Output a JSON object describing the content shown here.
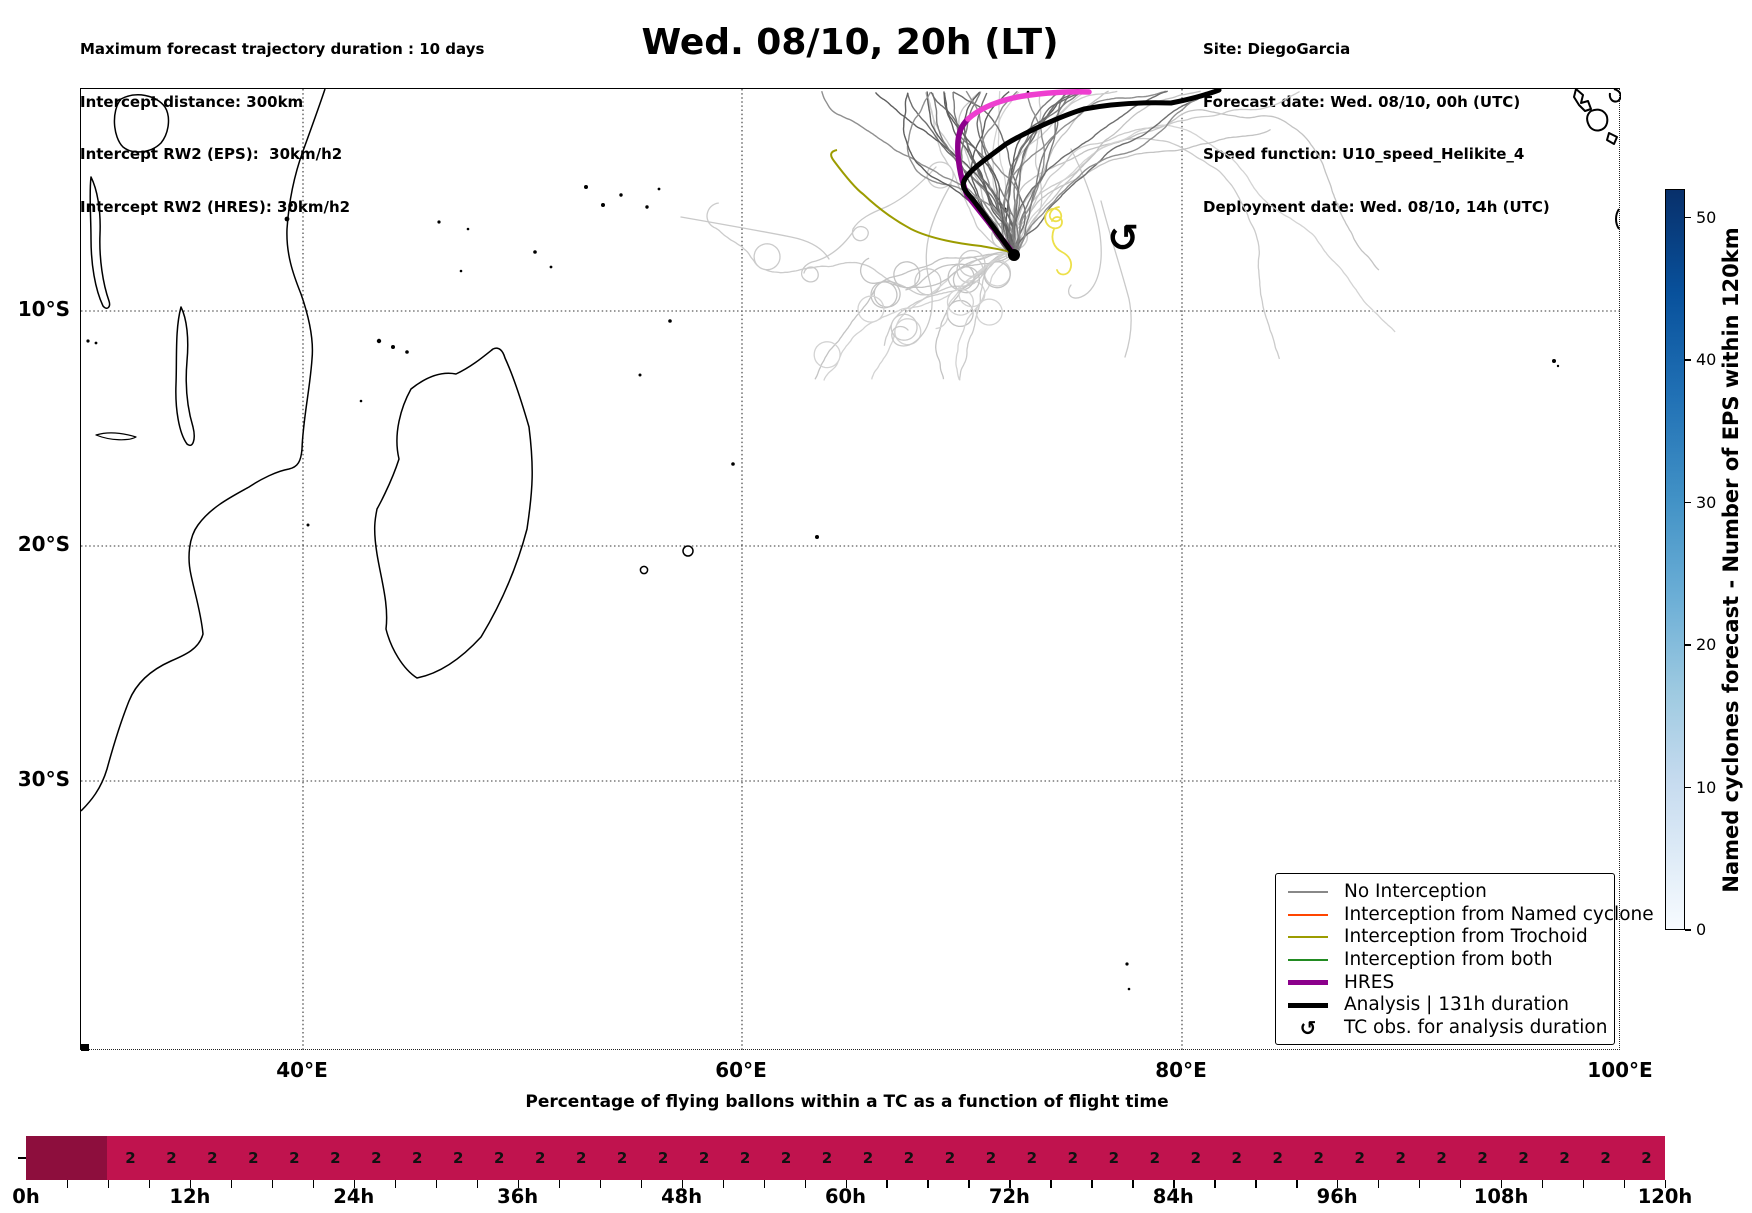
{
  "figure": {
    "title": "Wed. 08/10, 20h (LT)",
    "info_left": [
      "Maximum forecast trajectory duration : 10 days",
      "Intercept distance: 300km",
      "Intercept RW2 (EPS):  30km/h2",
      "Intercept RW2 (HRES): 30km/h2"
    ],
    "info_right": [
      "Site: DiegoGarcia",
      "Forecast date: Wed. 08/10, 00h (UTC)",
      "Speed function: U10_speed_Helikite_4",
      "Deployment date: Wed. 08/10, 14h (UTC)"
    ]
  },
  "map_axes": {
    "lon_ticks": [
      "40°E",
      "60°E",
      "80°E",
      "100°E"
    ],
    "lat_ticks": [
      "10°S",
      "20°S",
      "30°S"
    ],
    "tc_obs_symbol": "↺"
  },
  "legend": {
    "items": [
      {
        "label": "No Interception",
        "color": "#888888",
        "style": "line",
        "width": 2
      },
      {
        "label": "Interception from Named cyclone",
        "color": "#ff4500",
        "style": "line",
        "width": 2
      },
      {
        "label": "Interception from Trochoid",
        "color": "#9c9c00",
        "style": "line",
        "width": 2
      },
      {
        "label": "Interception from both",
        "color": "#228b22",
        "style": "line",
        "width": 2
      },
      {
        "label": "HRES",
        "color": "#8b008b",
        "style": "line",
        "width": 5
      },
      {
        "label": "Analysis | 131h duration",
        "color": "#000000",
        "style": "line",
        "width": 5
      },
      {
        "label": "TC obs. for analysis duration",
        "color": "#000000",
        "style": "symbol",
        "symbol": "↺"
      }
    ]
  },
  "colorbar": {
    "label": "Named cyclones forecast - Number of EPS within 120km",
    "ticks": [
      "0",
      "10",
      "20",
      "30",
      "40",
      "50"
    ],
    "range": [
      0,
      52
    ],
    "bottom_color": "#f7fbff",
    "top_color": "#08306b"
  },
  "chart_data": [
    {
      "type": "map",
      "title": "Wed. 08/10, 20h (LT)",
      "lon_range": [
        30,
        100.3
      ],
      "lat_range": [
        -41.6,
        0
      ],
      "gridlines": {
        "lon": [
          40,
          60,
          80,
          100
        ],
        "lat": [
          -10,
          -20,
          -30
        ],
        "style": "dotted"
      },
      "site": {
        "name": "DiegoGarcia",
        "lon": 72.4,
        "lat": -7.3
      },
      "ensemble": {
        "description": "EPS balloon forecast trajectories, no interception (gray)",
        "dark_count": 30,
        "light_count": 26,
        "dark_colors": [
          "#5f5f5f",
          "#6e6e6e",
          "#7d7d7d",
          "#8f8f8f"
        ],
        "light_colors": [
          "#c3c3c3",
          "#cbcbcb",
          "#d3d3d3"
        ],
        "seed": 7
      },
      "tracks": {
        "analysis_black": [
          [
            72.4,
            -7.0
          ],
          [
            70.5,
            -4.6
          ],
          [
            70.1,
            -4.0
          ],
          [
            71.4,
            -2.6
          ],
          [
            73.4,
            -1.8
          ],
          [
            75.6,
            -0.9
          ],
          [
            78.2,
            -0.6
          ],
          [
            80.0,
            -0.3
          ],
          [
            81.7,
            0.0
          ]
        ],
        "hres_purple": [
          [
            72.4,
            -7.0
          ],
          [
            70.7,
            -4.8
          ],
          [
            70.0,
            -3.2
          ],
          [
            69.8,
            -2.3
          ],
          [
            70.3,
            -1.3
          ]
        ],
        "hres_extension_magenta": [
          [
            70.3,
            -1.3
          ],
          [
            72.3,
            -0.4
          ],
          [
            74.0,
            -0.2
          ],
          [
            75.9,
            -0.1
          ]
        ],
        "trochoid_olive": [
          [
            64.2,
            -3.1
          ],
          [
            65.5,
            -4.4
          ],
          [
            66.8,
            -5.5
          ],
          [
            69.0,
            -6.2
          ],
          [
            70.9,
            -6.6
          ],
          [
            72.4,
            -7.0
          ]
        ],
        "tc_observed_yellow_spiral_center": [
          74.5,
          -5.7
        ],
        "tc_obs_symbol_position": [
          77.4,
          -6.3
        ]
      }
    },
    {
      "type": "bar",
      "title": "Percentage of flying ballons within a TC as a function of flight time",
      "x_tick_labels": [
        "0h",
        "12h",
        "24h",
        "36h",
        "48h",
        "60h",
        "72h",
        "84h",
        "96h",
        "108h",
        "120h"
      ],
      "x_range_hours": [
        0,
        120
      ],
      "bin_width_hours": 3,
      "leading_unlabeled_bins": 2,
      "leading_segment_color": "#8d0e3d",
      "bar_color": "#c0134e",
      "values": [
        2,
        2,
        2,
        2,
        2,
        2,
        2,
        2,
        2,
        2,
        2,
        2,
        2,
        2,
        2,
        2,
        2,
        2,
        2,
        2,
        2,
        2,
        2,
        2,
        2,
        2,
        2,
        2,
        2,
        2,
        2,
        2,
        2,
        2,
        2,
        2,
        2,
        2
      ],
      "value_unit": "%"
    }
  ]
}
